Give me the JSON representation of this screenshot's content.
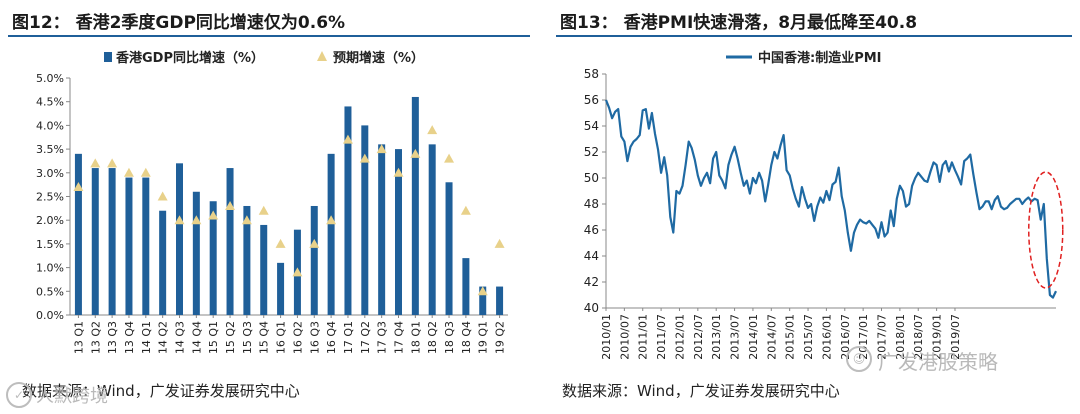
{
  "left": {
    "title": "图12：  香港2季度GDP同比增速仅为0.6%",
    "source": "数据来源：Wind，广发证券发展研究中心"
  },
  "right": {
    "title": "图13：  香港PMI快速滑落，8月最低降至40.8",
    "source": "数据来源：Wind，广发证券发展研究中心"
  },
  "watermarks": {
    "left_text": "人默跨境",
    "right_text": "广发港股策略",
    "left_icon": "✓",
    "right_icon": "☺"
  },
  "colors": {
    "bar": "#1f5f99",
    "marker": "#e8d18a",
    "line": "#1f6aa3",
    "highlight": "#e02020",
    "rule": "#1f5f99"
  },
  "chart_data": [
    {
      "type": "bar",
      "categories": [
        "13 Q1",
        "13 Q2",
        "13 Q3",
        "13 Q4",
        "14 Q1",
        "14 Q2",
        "14 Q3",
        "14 Q4",
        "15 Q1",
        "15 Q2",
        "15 Q3",
        "15 Q4",
        "16 Q1",
        "16 Q2",
        "16 Q3",
        "16 Q4",
        "17 Q1",
        "17 Q2",
        "17 Q3",
        "17 Q4",
        "18 Q1",
        "18 Q2",
        "18 Q3",
        "18 Q4",
        "19 Q1",
        "19 Q2"
      ],
      "series": [
        {
          "name": "香港GDP同比增速（%）",
          "kind": "bar",
          "values": [
            3.4,
            3.1,
            3.1,
            2.9,
            2.9,
            2.2,
            3.2,
            2.6,
            2.4,
            3.1,
            2.3,
            1.9,
            1.1,
            1.8,
            2.3,
            3.4,
            4.4,
            4.0,
            3.6,
            3.5,
            4.6,
            3.6,
            2.8,
            1.2,
            0.6,
            0.6
          ]
        },
        {
          "name": "预期增速（%）",
          "kind": "marker",
          "values": [
            2.7,
            3.2,
            3.2,
            3.0,
            3.0,
            2.5,
            2.0,
            2.0,
            2.1,
            2.3,
            2.0,
            2.2,
            1.5,
            0.9,
            1.5,
            2.0,
            3.7,
            3.3,
            3.5,
            3.0,
            3.4,
            3.9,
            3.3,
            2.2,
            0.5,
            1.5
          ]
        }
      ],
      "yticks": [
        "0.0%",
        "0.5%",
        "1.0%",
        "1.5%",
        "2.0%",
        "2.5%",
        "3.0%",
        "3.5%",
        "4.0%",
        "4.5%",
        "5.0%"
      ],
      "ylim": [
        0,
        5.0
      ],
      "legend": "top",
      "grid": false
    },
    {
      "type": "line",
      "series": [
        {
          "name": "中国香港:制造业PMI",
          "values": [
            56.0,
            55.4,
            54.6,
            55.1,
            55.3,
            53.2,
            52.8,
            51.3,
            52.4,
            52.8,
            53.0,
            53.3,
            55.2,
            55.3,
            53.8,
            55.0,
            53.4,
            52.2,
            50.4,
            51.6,
            50.2,
            47.0,
            45.8,
            49.0,
            48.8,
            49.4,
            51.0,
            52.8,
            52.3,
            51.4,
            50.2,
            49.4,
            50.0,
            50.4,
            49.6,
            51.5,
            52.0,
            50.2,
            49.8,
            49.2,
            51.0,
            51.8,
            52.4,
            51.5,
            50.4,
            49.4,
            49.8,
            48.8,
            50.0,
            49.6,
            50.4,
            49.8,
            48.2,
            49.5,
            51.0,
            52.0,
            51.5,
            52.5,
            53.3,
            50.6,
            50.2,
            49.2,
            48.4,
            47.8,
            49.3,
            48.4,
            47.7,
            48.0,
            46.7,
            47.8,
            48.5,
            48.1,
            49.0,
            48.3,
            49.5,
            49.7,
            50.8,
            48.6,
            47.5,
            45.8,
            44.4,
            45.8,
            46.4,
            46.8,
            46.6,
            46.5,
            46.7,
            46.4,
            46.1,
            45.4,
            46.6,
            45.5,
            45.8,
            47.5,
            46.3,
            48.4,
            49.4,
            49.0,
            47.8,
            48.0,
            49.4,
            50.0,
            50.4,
            50.1,
            49.8,
            49.7,
            50.5,
            51.2,
            51.0,
            49.7,
            51.0,
            51.3,
            50.5,
            51.2,
            50.6,
            50.1,
            49.5,
            51.3,
            51.5,
            51.8,
            50.3,
            48.9,
            47.6,
            47.8,
            48.2,
            48.2,
            47.6,
            48.3,
            48.6,
            47.8,
            47.6,
            47.7,
            48.0,
            48.2,
            48.4,
            48.4,
            48.0,
            48.3,
            48.5,
            48.2,
            48.4,
            48.3,
            46.8,
            48.0,
            43.8,
            41.0,
            40.8,
            41.3
          ]
        }
      ],
      "xticks": [
        "2010/01",
        "2010/07",
        "2011/01",
        "2011/07",
        "2012/01",
        "2012/07",
        "2013/01",
        "2013/07",
        "2014/01",
        "2014/07",
        "2015/01",
        "2015/07",
        "2016/01",
        "2016/07",
        "2017/01",
        "2017/07",
        "2018/01",
        "2018/07",
        "2019/01",
        "2019/07"
      ],
      "yticks": [
        40,
        42,
        44,
        46,
        48,
        50,
        52,
        54,
        56,
        58
      ],
      "ylim": [
        40,
        58
      ],
      "legend": "top",
      "grid": false,
      "annotation": "red dashed ellipse around mid-2019 drop"
    }
  ]
}
